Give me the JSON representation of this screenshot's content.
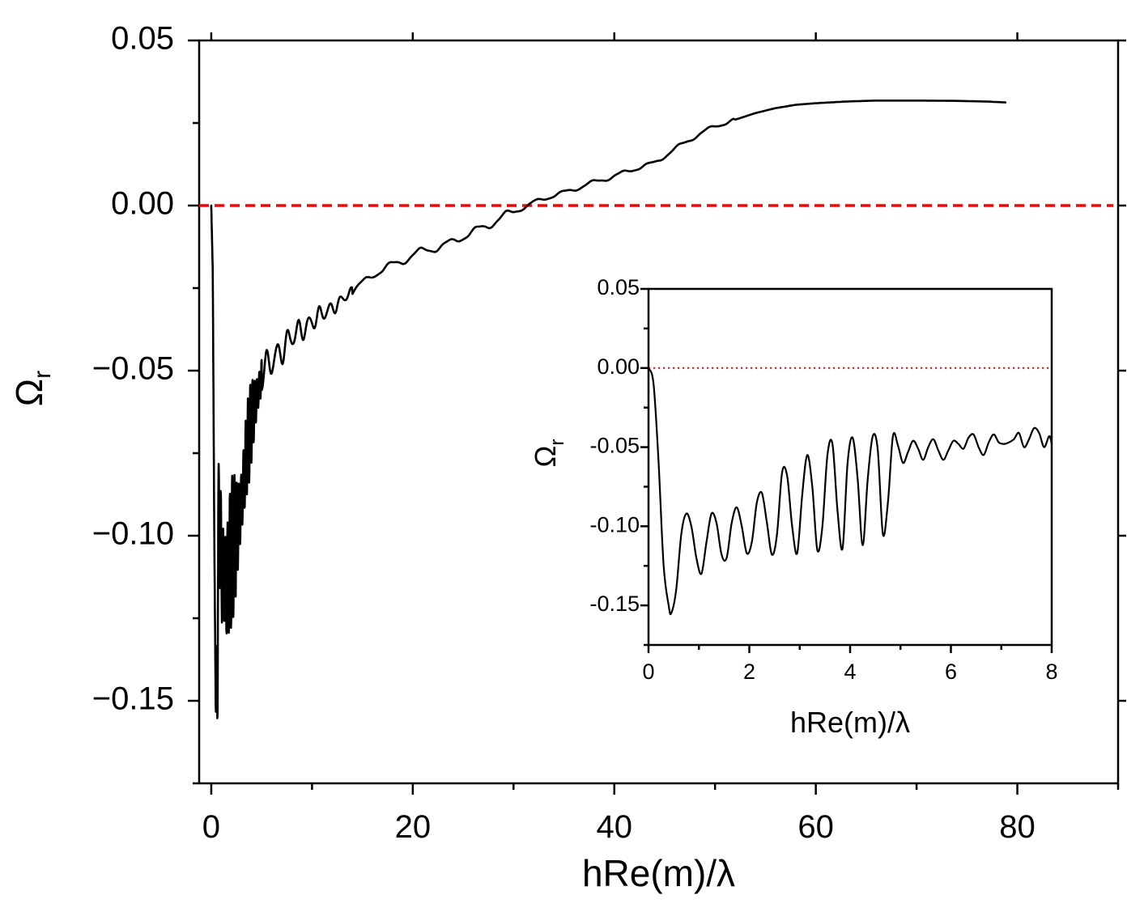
{
  "chart_data": [
    {
      "id": "main",
      "type": "line",
      "title": "",
      "xlabel": "hRe(m)/λ",
      "ylabel": "Ωr",
      "ylabel_base": "Ω",
      "ylabel_sub": "r",
      "xlim": [
        -1.2,
        90
      ],
      "ylim": [
        -0.175,
        0.05
      ],
      "xticks": [
        0,
        20,
        40,
        60,
        80
      ],
      "xtick_labels": [
        "0",
        "20",
        "40",
        "60",
        "80"
      ],
      "yticks": [
        0.05,
        0.0,
        -0.05,
        -0.1,
        -0.15
      ],
      "ytick_labels": [
        "0.05",
        "0.00",
        "−0.05",
        "−0.10",
        "−0.15"
      ],
      "reference_line": {
        "y": 0.0,
        "color": "#ff0000",
        "style": "dashed"
      },
      "series": [
        {
          "name": "Ωr",
          "color": "#000000",
          "anchors": [
            [
              0.0,
              0.0
            ],
            [
              0.15,
              -0.02
            ],
            [
              0.3,
              -0.1
            ],
            [
              0.45,
              -0.155
            ],
            [
              0.6,
              -0.13
            ],
            [
              0.8,
              -0.09
            ],
            [
              1.0,
              -0.11
            ],
            [
              1.5,
              -0.115
            ],
            [
              2.0,
              -0.105
            ],
            [
              2.5,
              -0.1
            ],
            [
              3.0,
              -0.09
            ],
            [
              3.5,
              -0.075
            ],
            [
              4.0,
              -0.065
            ],
            [
              5.0,
              -0.052
            ],
            [
              6.0,
              -0.047
            ],
            [
              8.0,
              -0.04
            ],
            [
              10.0,
              -0.035
            ],
            [
              12.0,
              -0.031
            ],
            [
              14.0,
              -0.026
            ],
            [
              16.0,
              -0.021
            ],
            [
              18.0,
              -0.018
            ],
            [
              20.0,
              -0.015
            ],
            [
              22.0,
              -0.013
            ],
            [
              24.0,
              -0.011
            ],
            [
              26.0,
              -0.008
            ],
            [
              28.0,
              -0.005
            ],
            [
              30.0,
              -0.002
            ],
            [
              32.0,
              0.001
            ],
            [
              34.0,
              0.003
            ],
            [
              36.0,
              0.005
            ],
            [
              38.0,
              0.007
            ],
            [
              40.0,
              0.009
            ],
            [
              42.0,
              0.011
            ],
            [
              44.0,
              0.013
            ],
            [
              46.0,
              0.017
            ],
            [
              48.0,
              0.021
            ],
            [
              50.0,
              0.024
            ],
            [
              52.0,
              0.026
            ],
            [
              54.0,
              0.028
            ],
            [
              56.0,
              0.0295
            ],
            [
              58.0,
              0.0305
            ],
            [
              60.0,
              0.031
            ],
            [
              63.0,
              0.0315
            ],
            [
              66.0,
              0.0318
            ],
            [
              70.0,
              0.0318
            ],
            [
              74.0,
              0.0317
            ],
            [
              77.0,
              0.0315
            ],
            [
              79.0,
              0.0312
            ]
          ]
        }
      ],
      "annotations": []
    },
    {
      "id": "inset",
      "type": "line",
      "title": "",
      "xlabel": "hRe(m)/λ",
      "ylabel": "Ωr",
      "ylabel_base": "Ω",
      "ylabel_sub": "r",
      "xlim": [
        0,
        8
      ],
      "ylim": [
        -0.175,
        0.05
      ],
      "xticks": [
        0,
        2,
        4,
        6,
        8
      ],
      "xtick_labels": [
        "0",
        "2",
        "4",
        "6",
        "8"
      ],
      "yticks": [
        0.05,
        0.0,
        -0.05,
        -0.1,
        -0.15
      ],
      "ytick_labels": [
        "0.05",
        "0.00",
        "-0.05",
        "-0.10",
        "-0.15"
      ],
      "reference_line": {
        "y": 0.0,
        "color": "#ff0000",
        "style": "dotted"
      },
      "series": [
        {
          "name": "Ωr",
          "color": "#000000",
          "points": [
            [
              0.0,
              0.0
            ],
            [
              0.1,
              -0.01
            ],
            [
              0.2,
              -0.06
            ],
            [
              0.3,
              -0.125
            ],
            [
              0.4,
              -0.15
            ],
            [
              0.45,
              -0.155
            ],
            [
              0.55,
              -0.14
            ],
            [
              0.65,
              -0.105
            ],
            [
              0.75,
              -0.092
            ],
            [
              0.85,
              -0.1
            ],
            [
              0.95,
              -0.12
            ],
            [
              1.05,
              -0.13
            ],
            [
              1.15,
              -0.11
            ],
            [
              1.25,
              -0.092
            ],
            [
              1.35,
              -0.098
            ],
            [
              1.45,
              -0.118
            ],
            [
              1.55,
              -0.12
            ],
            [
              1.65,
              -0.098
            ],
            [
              1.75,
              -0.088
            ],
            [
              1.85,
              -0.1
            ],
            [
              1.95,
              -0.117
            ],
            [
              2.05,
              -0.11
            ],
            [
              2.15,
              -0.085
            ],
            [
              2.25,
              -0.079
            ],
            [
              2.35,
              -0.098
            ],
            [
              2.45,
              -0.118
            ],
            [
              2.55,
              -0.105
            ],
            [
              2.65,
              -0.066
            ],
            [
              2.75,
              -0.068
            ],
            [
              2.85,
              -0.1
            ],
            [
              2.95,
              -0.117
            ],
            [
              3.05,
              -0.08
            ],
            [
              3.15,
              -0.055
            ],
            [
              3.25,
              -0.075
            ],
            [
              3.35,
              -0.115
            ],
            [
              3.45,
              -0.1
            ],
            [
              3.55,
              -0.055
            ],
            [
              3.65,
              -0.048
            ],
            [
              3.75,
              -0.09
            ],
            [
              3.85,
              -0.114
            ],
            [
              3.95,
              -0.06
            ],
            [
              4.05,
              -0.044
            ],
            [
              4.15,
              -0.07
            ],
            [
              4.25,
              -0.112
            ],
            [
              4.35,
              -0.07
            ],
            [
              4.45,
              -0.043
            ],
            [
              4.55,
              -0.052
            ],
            [
              4.65,
              -0.105
            ],
            [
              4.75,
              -0.085
            ],
            [
              4.85,
              -0.043
            ],
            [
              4.95,
              -0.049
            ],
            [
              5.05,
              -0.06
            ],
            [
              5.15,
              -0.053
            ],
            [
              5.25,
              -0.046
            ],
            [
              5.35,
              -0.051
            ],
            [
              5.45,
              -0.058
            ],
            [
              5.55,
              -0.05
            ],
            [
              5.65,
              -0.045
            ],
            [
              5.75,
              -0.052
            ],
            [
              5.85,
              -0.058
            ],
            [
              5.95,
              -0.052
            ],
            [
              6.05,
              -0.046
            ],
            [
              6.15,
              -0.048
            ],
            [
              6.25,
              -0.051
            ],
            [
              6.35,
              -0.044
            ],
            [
              6.45,
              -0.042
            ],
            [
              6.55,
              -0.05
            ],
            [
              6.65,
              -0.055
            ],
            [
              6.75,
              -0.047
            ],
            [
              6.85,
              -0.042
            ],
            [
              6.95,
              -0.047
            ],
            [
              7.05,
              -0.048
            ],
            [
              7.15,
              -0.047
            ],
            [
              7.25,
              -0.045
            ],
            [
              7.35,
              -0.041
            ],
            [
              7.45,
              -0.05
            ],
            [
              7.55,
              -0.045
            ],
            [
              7.65,
              -0.038
            ],
            [
              7.75,
              -0.041
            ],
            [
              7.85,
              -0.05
            ],
            [
              7.95,
              -0.043
            ],
            [
              8.0,
              -0.048
            ]
          ]
        }
      ],
      "annotations": []
    }
  ]
}
